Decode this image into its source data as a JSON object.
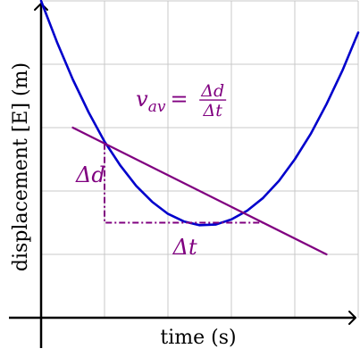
{
  "chart_data": {
    "type": "line",
    "xlabel": "time (s)",
    "ylabel": "displacement [E] (m)",
    "grid": true,
    "x_axis": {
      "min": 0,
      "max": 5,
      "step": 1
    },
    "y_axis": {
      "min": 0,
      "max": 5,
      "step": 1
    },
    "series": [
      {
        "kind": "curve",
        "color": "#0000cc",
        "points": [
          [
            0.0,
            5.0
          ],
          [
            0.25,
            4.35
          ],
          [
            0.5,
            3.76
          ],
          [
            0.75,
            3.24
          ],
          [
            1.0,
            2.78
          ],
          [
            1.25,
            2.4
          ],
          [
            1.5,
            2.08
          ],
          [
            1.75,
            1.83
          ],
          [
            2.0,
            1.64
          ],
          [
            2.25,
            1.52
          ],
          [
            2.5,
            1.46
          ],
          [
            2.75,
            1.47
          ],
          [
            3.0,
            1.55
          ],
          [
            3.25,
            1.69
          ],
          [
            3.5,
            1.89
          ],
          [
            3.75,
            2.16
          ],
          [
            4.0,
            2.5
          ],
          [
            4.25,
            2.9
          ],
          [
            4.5,
            3.37
          ],
          [
            4.75,
            3.9
          ],
          [
            5.0,
            4.5
          ]
        ]
      },
      {
        "kind": "secant",
        "color": "#800080",
        "points": [
          [
            0.5,
            3.0
          ],
          [
            4.5,
            1.0
          ]
        ]
      }
    ],
    "annotations": [
      {
        "id": "delta_d",
        "x": 0.78,
        "y": 2.14,
        "text": "Δd"
      },
      {
        "id": "delta_t",
        "x": 2.27,
        "y": 1.0,
        "text": "Δt"
      },
      {
        "id": "formula",
        "x": 2.27,
        "y": 3.45,
        "lhs": "v",
        "sub": "av",
        "eq": "=",
        "num": "Δd",
        "den": "Δt"
      }
    ],
    "rise_run": {
      "color": "#800080",
      "from": [
        1.0,
        2.75
      ],
      "corner": [
        1.0,
        1.5
      ],
      "to": [
        3.5,
        1.5
      ]
    }
  }
}
